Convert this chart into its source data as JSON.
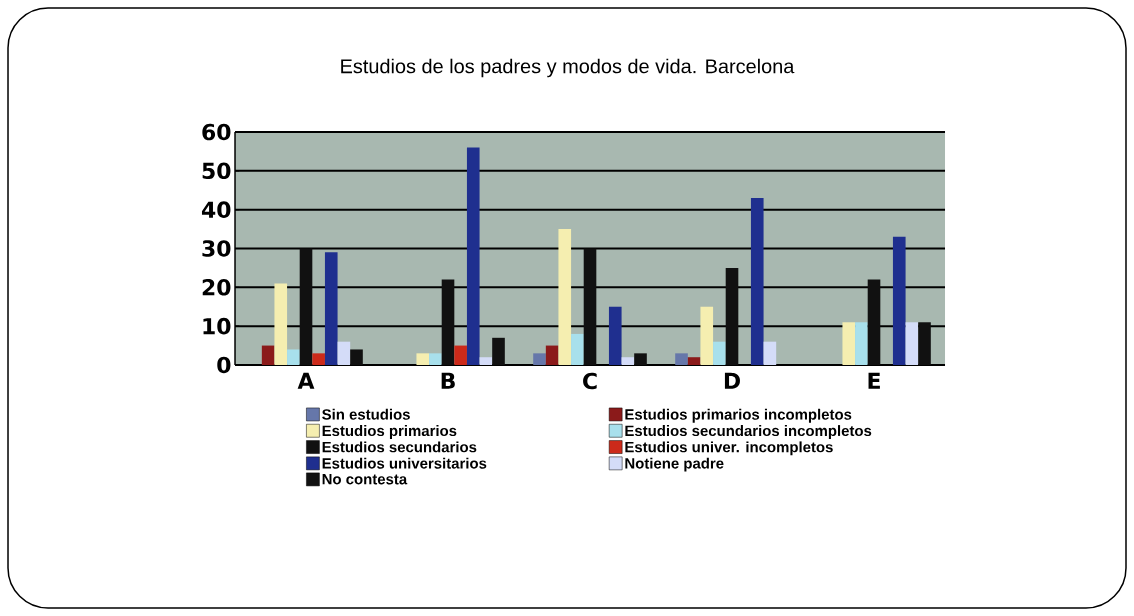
{
  "chart_data": {
    "type": "bar",
    "title": "Estudios de los padres y modos de vida. Barcelona",
    "categories": [
      "A",
      "B",
      "C",
      "D",
      "E"
    ],
    "series": [
      {
        "name": "Sin estudios",
        "color": "#6677aa",
        "values": [
          0,
          0,
          3,
          3,
          0
        ]
      },
      {
        "name": "Estudios primarios incompletos",
        "color": "#8b1a1a",
        "values": [
          5,
          0,
          5,
          2,
          0
        ]
      },
      {
        "name": "Estudios primarios",
        "color": "#f5eeb0",
        "values": [
          21,
          3,
          35,
          15,
          11
        ]
      },
      {
        "name": "Estudios secundarios incompletos",
        "color": "#a8e0ec",
        "values": [
          4,
          3,
          8,
          6,
          11
        ]
      },
      {
        "name": "Estudios secundarios",
        "color": "#111111",
        "values": [
          30,
          22,
          30,
          25,
          22
        ]
      },
      {
        "name": "Estudios univer. incompletos",
        "color": "#cc2a1a",
        "values": [
          3,
          5,
          0,
          0,
          0
        ]
      },
      {
        "name": "Estudios universitarios",
        "color": "#1f2f8f",
        "values": [
          29,
          56,
          15,
          43,
          33
        ]
      },
      {
        "name": "Notiene padre",
        "color": "#d4dcf8",
        "values": [
          6,
          2,
          2,
          6,
          11
        ]
      },
      {
        "name": "No contesta",
        "color": "#111111",
        "values": [
          4,
          7,
          3,
          0,
          11
        ]
      }
    ],
    "ylim": [
      0,
      60
    ],
    "yticks": [
      0,
      10,
      20,
      30,
      40,
      50,
      60
    ],
    "grid": "y",
    "legend": "bottom"
  }
}
